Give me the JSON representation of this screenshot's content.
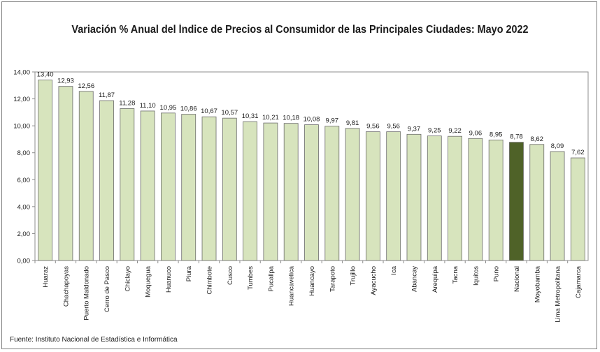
{
  "chart_data": {
    "type": "bar",
    "title": "Variación % Anual del Índice de Precios al Consumidor de las Principales Ciudades: Mayo 2022",
    "source": "Fuente: Instituto Nacional de Estadística e Informática",
    "categories": [
      "Huaraz",
      "Chachapoyas",
      "Puerto Maldonado",
      "Cerro de Pasco",
      "Chiclayo",
      "Moquegua",
      "Huanuco",
      "Piura",
      "Chimbote",
      "Cusco",
      "Tumbes",
      "Pucallpa",
      "Huancavelica",
      "Huancayo",
      "Tarapoto",
      "Trujillo",
      "Ayacucho",
      "Ica",
      "Abancay",
      "Arequipa",
      "Tacna",
      "Iquitos",
      "Puno",
      "Nacional",
      "Moyobamba",
      "Lima Metropolitana",
      "Cajamarca"
    ],
    "values": [
      13.4,
      12.93,
      12.56,
      11.87,
      11.28,
      11.1,
      10.95,
      10.86,
      10.67,
      10.57,
      10.31,
      10.21,
      10.18,
      10.08,
      9.97,
      9.81,
      9.56,
      9.56,
      9.37,
      9.25,
      9.22,
      9.06,
      8.95,
      8.78,
      8.62,
      8.09,
      7.62
    ],
    "value_labels": [
      "13,40",
      "12,93",
      "12,56",
      "11,87",
      "11,28",
      "11,10",
      "10,95",
      "10,86",
      "10,67",
      "10,57",
      "10,31",
      "10,21",
      "10,18",
      "10,08",
      "9,97",
      "9,81",
      "9,56",
      "9,56",
      "9,37",
      "9,25",
      "9,22",
      "9,06",
      "8,95",
      "8,78",
      "8,62",
      "8,09",
      "7,62"
    ],
    "yticks": [
      "0,00",
      "2,00",
      "4,00",
      "6,00",
      "8,00",
      "10,00",
      "12,00",
      "14,00"
    ],
    "ylim": [
      0,
      14
    ],
    "highlight_category": "Nacional",
    "colors": {
      "bar": "#d7e4bd",
      "bar_highlight": "#4f6228",
      "bar_stroke": "#6b6b6b",
      "plot_border": "#8c8c8c"
    },
    "grid": false,
    "legend": "none"
  }
}
